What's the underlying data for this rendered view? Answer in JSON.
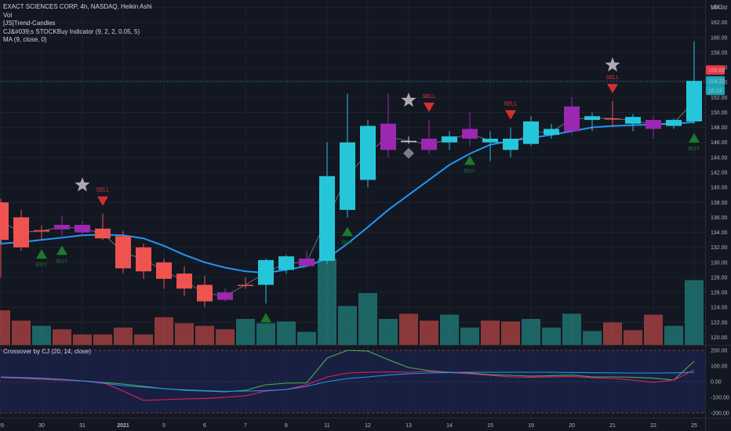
{
  "legend": {
    "title": "EXACT SCIENCES CORP, 4h, NASDAQ, Heikin Ashi",
    "vol": "Vol",
    "trend": "[JS]Trend-Candles",
    "stock": "CJ&#039;s STOCKBuy Indicator (9, 2, 2, 0.05, 5)",
    "ma": "MA (9, close, 0)"
  },
  "sub": {
    "title": "Crossover by CJ (20, 14, close)"
  },
  "price_axis": {
    "currency": "USD"
  },
  "labels": {
    "buy": "BUY",
    "sell": "SELL"
  },
  "badges": {
    "red": "155.65",
    "cyan_price": "154.22",
    "cyan_time": "16:24"
  },
  "colors": {
    "bg": "#131722",
    "up": "#26c6da",
    "down": "#ef5350",
    "neutral": "#9c27b0",
    "ma": "#2196f3",
    "thin_ma": "#b0b0b0",
    "vol_up": "#26a69a",
    "vol_down": "#ef5350",
    "osc_green": "#4caf50",
    "osc_red": "#e91e63",
    "osc_blue": "#2196f3"
  },
  "chart_data": [
    {
      "type": "candlestick",
      "style": "Heikin Ashi",
      "x_ticks": [
        "29",
        "30",
        "31",
        "2021",
        "5",
        "6",
        "7",
        "8",
        "11",
        "12",
        "13",
        "14",
        "15",
        "19",
        "20",
        "21",
        "22",
        "25"
      ],
      "y_ticks": [
        120,
        122,
        124,
        126,
        128,
        130,
        132,
        134,
        136,
        138,
        140,
        142,
        144,
        146,
        148,
        150,
        152,
        154,
        156,
        158,
        160,
        162,
        164
      ],
      "ylim": [
        119,
        165
      ],
      "candles": [
        {
          "o": 138.0,
          "h": 138.5,
          "l": 128.0,
          "c": 133.0,
          "k": "down"
        },
        {
          "o": 136.0,
          "h": 137.0,
          "l": 131.5,
          "c": 132.0,
          "k": "down"
        },
        {
          "o": 134.3,
          "h": 134.9,
          "l": 133.0,
          "c": 134.1,
          "k": "down"
        },
        {
          "o": 134.4,
          "h": 136.2,
          "l": 133.5,
          "c": 135.0,
          "k": "neutral"
        },
        {
          "o": 135.0,
          "h": 135.5,
          "l": 133.5,
          "c": 134.0,
          "k": "neutral"
        },
        {
          "o": 134.5,
          "h": 136.5,
          "l": 133.0,
          "c": 133.2,
          "k": "down"
        },
        {
          "o": 133.5,
          "h": 134.2,
          "l": 128.5,
          "c": 129.2,
          "k": "down"
        },
        {
          "o": 132.0,
          "h": 132.5,
          "l": 127.8,
          "c": 128.8,
          "k": "down"
        },
        {
          "o": 130.0,
          "h": 130.5,
          "l": 126.5,
          "c": 127.8,
          "k": "down"
        },
        {
          "o": 128.5,
          "h": 129.5,
          "l": 125.5,
          "c": 126.5,
          "k": "down"
        },
        {
          "o": 127.0,
          "h": 128.2,
          "l": 124.0,
          "c": 124.8,
          "k": "down"
        },
        {
          "o": 126.0,
          "h": 126.5,
          "l": 124.8,
          "c": 125.0,
          "k": "neutral"
        },
        {
          "o": 127.0,
          "h": 128.0,
          "l": 126.5,
          "c": 127.0,
          "k": "down"
        },
        {
          "o": 127.0,
          "h": 130.5,
          "l": 124.5,
          "c": 130.3,
          "k": "up"
        },
        {
          "o": 129.0,
          "h": 131.0,
          "l": 128.5,
          "c": 130.8,
          "k": "up"
        },
        {
          "o": 130.5,
          "h": 131.5,
          "l": 129.5,
          "c": 129.5,
          "k": "neutral"
        },
        {
          "o": 130.2,
          "h": 146.0,
          "l": 129.8,
          "c": 141.5,
          "k": "up"
        },
        {
          "o": 137.0,
          "h": 152.5,
          "l": 136.0,
          "c": 146.0,
          "k": "up"
        },
        {
          "o": 141.0,
          "h": 149.0,
          "l": 140.0,
          "c": 148.2,
          "k": "up"
        },
        {
          "o": 148.5,
          "h": 152.5,
          "l": 144.0,
          "c": 145.0,
          "k": "neutral"
        },
        {
          "o": 146.2,
          "h": 146.8,
          "l": 145.8,
          "c": 146.2,
          "k": "flat"
        },
        {
          "o": 146.5,
          "h": 149.0,
          "l": 144.5,
          "c": 145.0,
          "k": "neutral"
        },
        {
          "o": 146.0,
          "h": 147.5,
          "l": 145.0,
          "c": 146.8,
          "k": "up"
        },
        {
          "o": 146.5,
          "h": 150.0,
          "l": 145.5,
          "c": 147.8,
          "k": "neutral"
        },
        {
          "o": 146.0,
          "h": 147.5,
          "l": 143.5,
          "c": 146.5,
          "k": "up"
        },
        {
          "o": 145.0,
          "h": 148.0,
          "l": 144.0,
          "c": 146.5,
          "k": "up"
        },
        {
          "o": 145.8,
          "h": 149.5,
          "l": 145.5,
          "c": 148.8,
          "k": "up"
        },
        {
          "o": 147.0,
          "h": 148.5,
          "l": 146.5,
          "c": 147.8,
          "k": "up"
        },
        {
          "o": 147.5,
          "h": 152.0,
          "l": 147.0,
          "c": 150.8,
          "k": "neutral"
        },
        {
          "o": 149.0,
          "h": 150.0,
          "l": 147.5,
          "c": 149.5,
          "k": "up"
        },
        {
          "o": 149.2,
          "h": 151.5,
          "l": 148.0,
          "c": 149.2,
          "k": "down"
        },
        {
          "o": 148.5,
          "h": 149.8,
          "l": 147.5,
          "c": 149.4,
          "k": "up"
        },
        {
          "o": 149.0,
          "h": 149.5,
          "l": 146.5,
          "c": 147.8,
          "k": "neutral"
        },
        {
          "o": 148.2,
          "h": 149.2,
          "l": 147.8,
          "c": 149.0,
          "k": "up"
        },
        {
          "o": 148.8,
          "h": 159.5,
          "l": 148.5,
          "c": 154.2,
          "k": "up"
        }
      ],
      "ma": [
        132.5,
        132.7,
        133.0,
        133.3,
        133.6,
        133.7,
        133.6,
        133.2,
        132.2,
        131.0,
        130.0,
        129.3,
        128.8,
        128.6,
        129.0,
        129.5,
        130.5,
        132.5,
        134.7,
        137.0,
        139.0,
        141.0,
        143.0,
        144.5,
        145.7,
        146.2,
        146.6,
        147.0,
        147.5,
        148.0,
        148.2,
        148.3,
        148.4,
        148.5,
        148.7
      ],
      "volume": [
        {
          "v": 0.4,
          "k": "down"
        },
        {
          "v": 0.28,
          "k": "down"
        },
        {
          "v": 0.22,
          "k": "up"
        },
        {
          "v": 0.18,
          "k": "down"
        },
        {
          "v": 0.12,
          "k": "down"
        },
        {
          "v": 0.12,
          "k": "down"
        },
        {
          "v": 0.2,
          "k": "down"
        },
        {
          "v": 0.12,
          "k": "down"
        },
        {
          "v": 0.32,
          "k": "down"
        },
        {
          "v": 0.25,
          "k": "down"
        },
        {
          "v": 0.22,
          "k": "down"
        },
        {
          "v": 0.18,
          "k": "down"
        },
        {
          "v": 0.3,
          "k": "up"
        },
        {
          "v": 0.25,
          "k": "up"
        },
        {
          "v": 0.27,
          "k": "up"
        },
        {
          "v": 0.15,
          "k": "up"
        },
        {
          "v": 1.0,
          "k": "up"
        },
        {
          "v": 0.45,
          "k": "up"
        },
        {
          "v": 0.6,
          "k": "up"
        },
        {
          "v": 0.3,
          "k": "up"
        },
        {
          "v": 0.36,
          "k": "down"
        },
        {
          "v": 0.28,
          "k": "down"
        },
        {
          "v": 0.35,
          "k": "up"
        },
        {
          "v": 0.2,
          "k": "up"
        },
        {
          "v": 0.28,
          "k": "down"
        },
        {
          "v": 0.27,
          "k": "down"
        },
        {
          "v": 0.3,
          "k": "up"
        },
        {
          "v": 0.2,
          "k": "up"
        },
        {
          "v": 0.36,
          "k": "up"
        },
        {
          "v": 0.16,
          "k": "up"
        },
        {
          "v": 0.26,
          "k": "down"
        },
        {
          "v": 0.17,
          "k": "down"
        },
        {
          "v": 0.35,
          "k": "down"
        },
        {
          "v": 0.22,
          "k": "up"
        },
        {
          "v": 0.75,
          "k": "up"
        }
      ],
      "signals": [
        {
          "i": 2,
          "type": "buy"
        },
        {
          "i": 3,
          "type": "buy"
        },
        {
          "i": 4,
          "type": "star"
        },
        {
          "i": 5,
          "type": "sell"
        },
        {
          "i": 13,
          "type": "buy"
        },
        {
          "i": 17,
          "type": "buy"
        },
        {
          "i": 20,
          "type": "star"
        },
        {
          "i": 20,
          "type": "diamond"
        },
        {
          "i": 21,
          "type": "sell"
        },
        {
          "i": 23,
          "type": "buy"
        },
        {
          "i": 25,
          "type": "sell"
        },
        {
          "i": 30,
          "type": "star"
        },
        {
          "i": 30,
          "type": "sell"
        },
        {
          "i": 34,
          "type": "buy"
        }
      ]
    },
    {
      "type": "line",
      "name": "Crossover by CJ (20, 14, close)",
      "y_ticks": [
        200,
        100,
        0,
        -100,
        -200
      ],
      "ylim": [
        -230,
        230
      ],
      "levels": [
        200,
        -200
      ],
      "series": [
        {
          "color": "green",
          "values": [
            26,
            22,
            15,
            10,
            5,
            -5,
            -15,
            -30,
            -45,
            -55,
            -60,
            -65,
            -55,
            -20,
            -10,
            -8,
            150,
            200,
            195,
            140,
            90,
            70,
            60,
            55,
            45,
            40,
            35,
            38,
            42,
            30,
            30,
            28,
            22,
            10,
            130
          ]
        },
        {
          "color": "red",
          "values": [
            26,
            22,
            15,
            10,
            5,
            -5,
            -60,
            -120,
            -115,
            -110,
            -108,
            -100,
            -90,
            -60,
            -50,
            -20,
            30,
            55,
            60,
            62,
            60,
            65,
            58,
            50,
            40,
            30,
            28,
            30,
            32,
            25,
            20,
            10,
            -5,
            10,
            75
          ]
        },
        {
          "color": "blue",
          "values": [
            30,
            26,
            22,
            15,
            5,
            -10,
            -25,
            -35,
            -45,
            -52,
            -58,
            -62,
            -60,
            -58,
            -50,
            -30,
            0,
            20,
            30,
            42,
            50,
            55,
            58,
            60,
            60,
            60,
            60,
            60,
            58,
            57,
            56,
            55,
            55,
            56,
            60
          ]
        }
      ]
    }
  ]
}
